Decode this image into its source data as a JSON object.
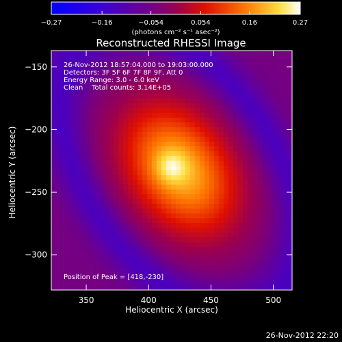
{
  "chart_data": {
    "type": "heatmap",
    "title": "Reconstructed RHESSI Image",
    "xlabel": "Heliocentric X (arcsec)",
    "ylabel": "Heliocentric Y (arcsec)",
    "xlim": [
      322,
      515
    ],
    "ylim": [
      -328,
      -137
    ],
    "x_ticks": [
      350,
      400,
      450,
      500
    ],
    "y_ticks": [
      -150,
      -200,
      -250,
      -300
    ],
    "x_tick_labels": [
      "350",
      "400",
      "450",
      "500"
    ],
    "y_tick_labels": [
      "−150",
      "−200",
      "−250",
      "−300"
    ],
    "colorbar": {
      "min": -0.27,
      "max": 0.27,
      "ticks": [
        -0.27,
        -0.16,
        -0.054,
        0.054,
        0.16,
        0.27
      ],
      "tick_labels": [
        "−0.27",
        "−0.16",
        "−0.054",
        "0.054",
        "0.16",
        "0.27"
      ],
      "unit_label": "(photons cm⁻² s⁻¹ asec⁻²)",
      "colormap": "blue-purple-red-yellow-white"
    },
    "annotations": {
      "line1": "26-Nov-2012 18:57:04.000 to 19:03:00.000",
      "line2": "Detectors: 3F 5F 6F 7F 8F 9F, Att 0",
      "line3": "Energy Range: 3.0 - 6.0 keV",
      "line4": "Clean    Total counts: 3.14E+05",
      "peak": "Position of Peak = [418,-230]"
    },
    "peak": [
      418,
      -230
    ],
    "peak_value": 0.27,
    "background_value": -0.05,
    "source": {
      "center": [
        425,
        -232
      ],
      "sigma_major": 40,
      "sigma_minor": 28,
      "angle_deg": -55
    }
  },
  "footer_timestamp": "26-Nov-2012 22:20"
}
